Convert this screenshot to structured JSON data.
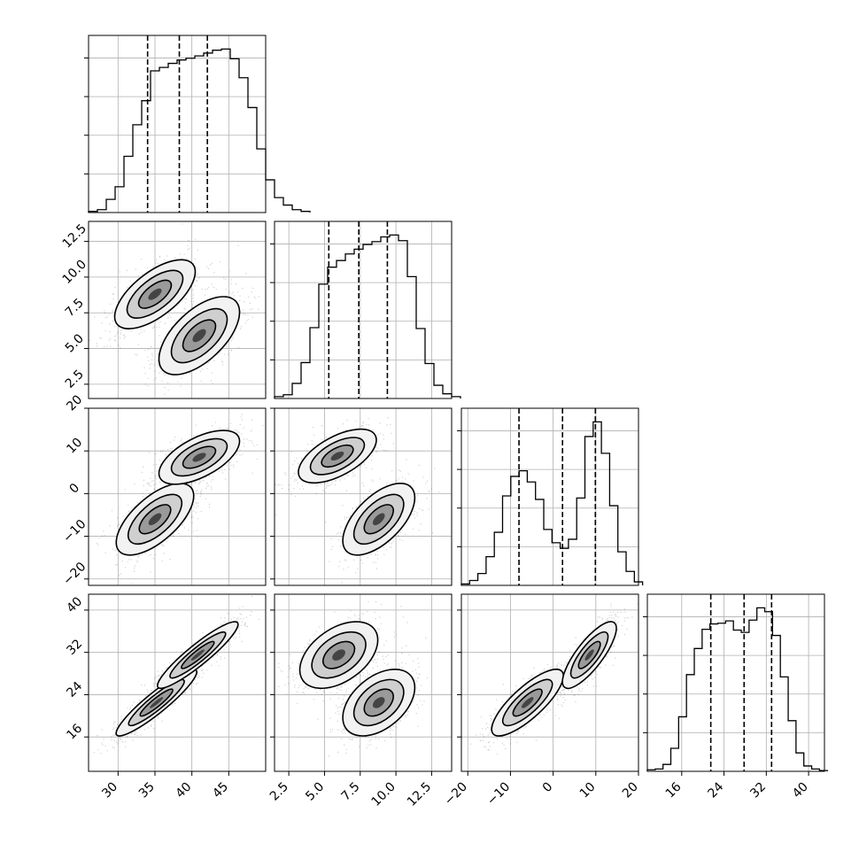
{
  "chart_data": {
    "type": "corner",
    "colors": {
      "hist": "#000000",
      "grid": "#b0b0b0",
      "points": "#000000",
      "quantile": "#000000"
    },
    "parameters": [
      {
        "range": [
          26,
          50
        ],
        "ticks": [
          30,
          35,
          40,
          45
        ],
        "tick_labels": [
          "30",
          "35",
          "40",
          "45"
        ],
        "quantiles": [
          34.0,
          38.3,
          42.1
        ]
      },
      {
        "range": [
          1.5,
          13.9
        ],
        "ticks": [
          2.5,
          5.0,
          7.5,
          10.0,
          12.5
        ],
        "tick_labels": [
          "2.5",
          "5.0",
          "7.5",
          "10.0",
          "12.5"
        ],
        "quantiles": [
          5.3,
          7.4,
          9.4
        ]
      },
      {
        "range": [
          -21.5,
          20
        ],
        "ticks": [
          -20,
          -10,
          0,
          10,
          20
        ],
        "tick_labels": [
          "−20",
          "−10",
          "0",
          "10",
          "20"
        ],
        "quantiles": [
          -8.0,
          2.2,
          9.9
        ]
      },
      {
        "range": [
          9.5,
          43
        ],
        "ticks": [
          16,
          24,
          32,
          40
        ],
        "tick_labels": [
          "16",
          "24",
          "32",
          "40"
        ],
        "quantiles": [
          21.5,
          27.8,
          33.0
        ]
      }
    ],
    "histograms": [
      {
        "parameter": 0,
        "bin_start": 26,
        "bin_width": 1.2,
        "counts": [
          0.2,
          0.5,
          2.3,
          4.5,
          9.8,
          15.3,
          19.5,
          24.7,
          25.3,
          26.0,
          26.6,
          26.9,
          27.3,
          27.8,
          28.3,
          28.5,
          26.8,
          23.5,
          18.3,
          11.1,
          5.7,
          2.6,
          1.3,
          0.5,
          0.2
        ]
      },
      {
        "parameter": 1,
        "bin_start": 1.5,
        "bin_width": 0.62,
        "counts": [
          0.2,
          0.4,
          1.6,
          3.8,
          7.5,
          12.1,
          13.9,
          14.6,
          15.3,
          15.8,
          16.3,
          16.6,
          17.1,
          17.3,
          16.7,
          12.9,
          7.4,
          3.7,
          1.4,
          0.5,
          0.2
        ]
      },
      {
        "parameter": 2,
        "bin_start": -21.5,
        "bin_width": 1.93,
        "counts": [
          0.2,
          0.7,
          1.7,
          4.1,
          7.6,
          12.8,
          15.6,
          16.4,
          14.8,
          12.3,
          8.0,
          6.1,
          5.3,
          6.6,
          12.5,
          21.3,
          23.4,
          18.9,
          11.4,
          4.8,
          2.0,
          0.5
        ]
      },
      {
        "parameter": 3,
        "bin_start": 9.5,
        "bin_width": 1.48,
        "counts": [
          0.2,
          0.3,
          0.9,
          3.0,
          7.1,
          12.6,
          16.0,
          18.5,
          19.2,
          19.3,
          19.6,
          18.4,
          18.1,
          19.7,
          21.3,
          20.8,
          17.7,
          12.3,
          6.6,
          2.4,
          0.7,
          0.3,
          0.1
        ]
      }
    ],
    "pairs": [
      {
        "x": 0,
        "y": 1,
        "components": [
          {
            "mean": [
              35,
              8.8
            ],
            "sd": [
              2.6,
              1.15
            ],
            "rho": 0.65,
            "weight": 0.5
          },
          {
            "mean": [
              41,
              5.9
            ],
            "sd": [
              2.6,
              1.3
            ],
            "rho": 0.6,
            "weight": 0.5
          }
        ]
      },
      {
        "x": 0,
        "y": 2,
        "components": [
          {
            "mean": [
              35,
              -6
            ],
            "sd": [
              2.5,
              4.0
            ],
            "rho": 0.65,
            "weight": 0.5
          },
          {
            "mean": [
              41,
              8.5
            ],
            "sd": [
              2.6,
              3.0
            ],
            "rho": 0.6,
            "weight": 0.5
          }
        ]
      },
      {
        "x": 0,
        "y": 3,
        "components": [
          {
            "mean": [
              35.2,
              22.5
            ],
            "sd": [
              2.6,
              3.0
            ],
            "rho": 0.92,
            "weight": 0.5
          },
          {
            "mean": [
              40.8,
              31.5
            ],
            "sd": [
              2.6,
              3.0
            ],
            "rho": 0.92,
            "weight": 0.5
          }
        ]
      },
      {
        "x": 1,
        "y": 2,
        "components": [
          {
            "mean": [
              5.9,
              8.8
            ],
            "sd": [
              1.3,
              3.0
            ],
            "rho": 0.6,
            "weight": 0.5
          },
          {
            "mean": [
              8.8,
              -6
            ],
            "sd": [
              1.2,
              4.0
            ],
            "rho": 0.6,
            "weight": 0.5
          }
        ]
      },
      {
        "x": 1,
        "y": 3,
        "components": [
          {
            "mean": [
              6.0,
              31.5
            ],
            "sd": [
              1.3,
              3.0
            ],
            "rho": 0.45,
            "weight": 0.5
          },
          {
            "mean": [
              8.8,
              22.5
            ],
            "sd": [
              1.2,
              3.0
            ],
            "rho": 0.45,
            "weight": 0.5
          }
        ]
      },
      {
        "x": 2,
        "y": 3,
        "components": [
          {
            "mean": [
              -6,
              22.5
            ],
            "sd": [
              4.0,
              3.0
            ],
            "rho": 0.8,
            "weight": 0.5
          },
          {
            "mean": [
              8.5,
              31.5
            ],
            "sd": [
              3.0,
              3.0
            ],
            "rho": 0.8,
            "weight": 0.5
          }
        ]
      }
    ],
    "contour_levels": [
      0.2,
      0.45,
      0.72
    ],
    "grid": true
  }
}
